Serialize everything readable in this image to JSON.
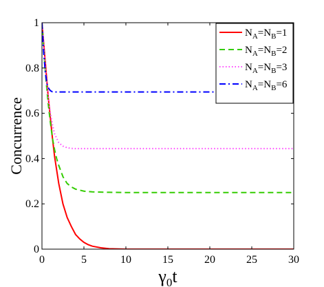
{
  "chart_data": {
    "type": "line",
    "title": "",
    "xlabel": {
      "main": "γ",
      "sub": "0",
      "tail": "t"
    },
    "ylabel": "Concurrence",
    "xlim": [
      0,
      30
    ],
    "ylim": [
      0,
      1
    ],
    "xticks": [
      0,
      5,
      10,
      15,
      20,
      25,
      30
    ],
    "yticks": [
      0,
      0.2,
      0.4,
      0.6,
      0.8,
      1
    ],
    "xtick_labels": [
      "0",
      "5",
      "10",
      "15",
      "20",
      "25",
      "30"
    ],
    "ytick_labels": [
      "0",
      "0.2",
      "0.4",
      "0.6",
      "0.8",
      "1"
    ],
    "grid": false,
    "legend_position": "top-right",
    "series": [
      {
        "name": "N_A=N_B=1",
        "legend": {
          "n1": "N",
          "s1": "A",
          "eq": "=N",
          "s2": "B",
          "val": "=1"
        },
        "color": "#ff0000",
        "dash": "solid",
        "x": [
          0,
          0.25,
          0.5,
          0.75,
          1,
          1.25,
          1.5,
          1.75,
          2,
          2.5,
          3,
          3.5,
          4,
          4.5,
          5,
          5.5,
          6,
          7,
          8,
          10,
          15,
          20,
          25,
          30
        ],
        "y": [
          1,
          0.89,
          0.78,
          0.67,
          0.58,
          0.49,
          0.41,
          0.35,
          0.29,
          0.2,
          0.14,
          0.1,
          0.065,
          0.045,
          0.03,
          0.02,
          0.013,
          0.006,
          0.002,
          0,
          0,
          0,
          0,
          0
        ]
      },
      {
        "name": "N_A=N_B=2",
        "legend": {
          "n1": "N",
          "s1": "A",
          "eq": "=N",
          "s2": "B",
          "val": "=2"
        },
        "color": "#33cc00",
        "dash": "dashed",
        "x": [
          0,
          0.25,
          0.5,
          0.75,
          1,
          1.25,
          1.5,
          1.75,
          2,
          2.5,
          3,
          3.5,
          4,
          5,
          6,
          8,
          10,
          15,
          20,
          25,
          30
        ],
        "y": [
          1,
          0.86,
          0.74,
          0.64,
          0.56,
          0.49,
          0.44,
          0.4,
          0.37,
          0.32,
          0.29,
          0.275,
          0.265,
          0.256,
          0.253,
          0.251,
          0.25,
          0.25,
          0.25,
          0.25,
          0.25
        ]
      },
      {
        "name": "N_A=N_B=3",
        "legend": {
          "n1": "N",
          "s1": "A",
          "eq": "=N",
          "s2": "B",
          "val": "=3"
        },
        "color": "#ff44ff",
        "dash": "dotted",
        "x": [
          0,
          0.25,
          0.5,
          0.75,
          1,
          1.25,
          1.5,
          1.75,
          2,
          2.5,
          3,
          3.5,
          4,
          5,
          6,
          8,
          10,
          15,
          20,
          25,
          30
        ],
        "y": [
          1,
          0.88,
          0.76,
          0.67,
          0.6,
          0.55,
          0.51,
          0.49,
          0.47,
          0.455,
          0.448,
          0.445,
          0.444,
          0.444,
          0.444,
          0.444,
          0.444,
          0.444,
          0.444,
          0.444,
          0.444
        ]
      },
      {
        "name": "N_A=N_B=6",
        "legend": {
          "n1": "N",
          "s1": "A",
          "eq": "=N",
          "s2": "B",
          "val": "=6"
        },
        "color": "#0000ff",
        "dash": "dashdot",
        "x": [
          0,
          0.2,
          0.4,
          0.6,
          0.8,
          1,
          1.25,
          1.5,
          2,
          3,
          5,
          10,
          15,
          20,
          25,
          30
        ],
        "y": [
          1,
          0.87,
          0.78,
          0.73,
          0.71,
          0.7,
          0.695,
          0.694,
          0.694,
          0.694,
          0.694,
          0.694,
          0.694,
          0.694,
          0.694,
          0.694
        ]
      }
    ]
  }
}
